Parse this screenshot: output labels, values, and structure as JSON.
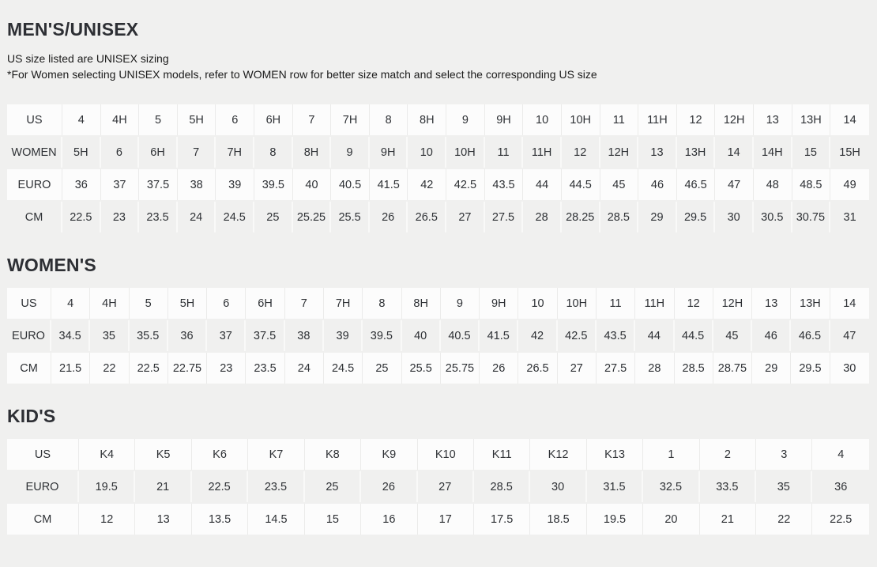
{
  "page": {
    "background_color": "#f0f0ef",
    "row_white_color": "#fcfcfc",
    "row_gray_color": "#f0f0ef",
    "text_color": "#2d2f34"
  },
  "sections": [
    {
      "id": "mens",
      "title": "MEN'S/UNISEX",
      "notes": [
        "US size listed are UNISEX sizing",
        "*For Women selecting UNISEX models, refer to WOMEN row for better size match and select the corresponding US size"
      ],
      "table": {
        "rows": [
          {
            "label": "US",
            "values": [
              "4",
              "4H",
              "5",
              "5H",
              "6",
              "6H",
              "7",
              "7H",
              "8",
              "8H",
              "9",
              "9H",
              "10",
              "10H",
              "11",
              "11H",
              "12",
              "12H",
              "13",
              "13H",
              "14"
            ]
          },
          {
            "label": "WOMEN",
            "values": [
              "5H",
              "6",
              "6H",
              "7",
              "7H",
              "8",
              "8H",
              "9",
              "9H",
              "10",
              "10H",
              "11",
              "11H",
              "12",
              "12H",
              "13",
              "13H",
              "14",
              "14H",
              "15",
              "15H"
            ]
          },
          {
            "label": "EURO",
            "values": [
              "36",
              "37",
              "37.5",
              "38",
              "39",
              "39.5",
              "40",
              "40.5",
              "41.5",
              "42",
              "42.5",
              "43.5",
              "44",
              "44.5",
              "45",
              "46",
              "46.5",
              "47",
              "48",
              "48.5",
              "49"
            ]
          },
          {
            "label": "CM",
            "values": [
              "22.5",
              "23",
              "23.5",
              "24",
              "24.5",
              "25",
              "25.25",
              "25.5",
              "26",
              "26.5",
              "27",
              "27.5",
              "28",
              "28.25",
              "28.5",
              "29",
              "29.5",
              "30",
              "30.5",
              "30.75",
              "31"
            ]
          }
        ]
      }
    },
    {
      "id": "womens",
      "title": "WOMEN'S",
      "notes": [],
      "table": {
        "rows": [
          {
            "label": "US",
            "values": [
              "4",
              "4H",
              "5",
              "5H",
              "6",
              "6H",
              "7",
              "7H",
              "8",
              "8H",
              "9",
              "9H",
              "10",
              "10H",
              "11",
              "11H",
              "12",
              "12H",
              "13",
              "13H",
              "14"
            ]
          },
          {
            "label": "EURO",
            "values": [
              "34.5",
              "35",
              "35.5",
              "36",
              "37",
              "37.5",
              "38",
              "39",
              "39.5",
              "40",
              "40.5",
              "41.5",
              "42",
              "42.5",
              "43.5",
              "44",
              "44.5",
              "45",
              "46",
              "46.5",
              "47"
            ]
          },
          {
            "label": "CM",
            "values": [
              "21.5",
              "22",
              "22.5",
              "22.75",
              "23",
              "23.5",
              "24",
              "24.5",
              "25",
              "25.5",
              "25.75",
              "26",
              "26.5",
              "27",
              "27.5",
              "28",
              "28.5",
              "28.75",
              "29",
              "29.5",
              "30"
            ]
          }
        ]
      }
    },
    {
      "id": "kids",
      "title": "KID'S",
      "notes": [],
      "table": {
        "rows": [
          {
            "label": "US",
            "values": [
              "K4",
              "K5",
              "K6",
              "K7",
              "K8",
              "K9",
              "K10",
              "K11",
              "K12",
              "K13",
              "1",
              "2",
              "3",
              "4"
            ]
          },
          {
            "label": "EURO",
            "values": [
              "19.5",
              "21",
              "22.5",
              "23.5",
              "25",
              "26",
              "27",
              "28.5",
              "30",
              "31.5",
              "32.5",
              "33.5",
              "35",
              "36"
            ]
          },
          {
            "label": "CM",
            "values": [
              "12",
              "13",
              "13.5",
              "14.5",
              "15",
              "16",
              "17",
              "17.5",
              "18.5",
              "19.5",
              "20",
              "21",
              "22",
              "22.5"
            ]
          }
        ]
      }
    }
  ]
}
